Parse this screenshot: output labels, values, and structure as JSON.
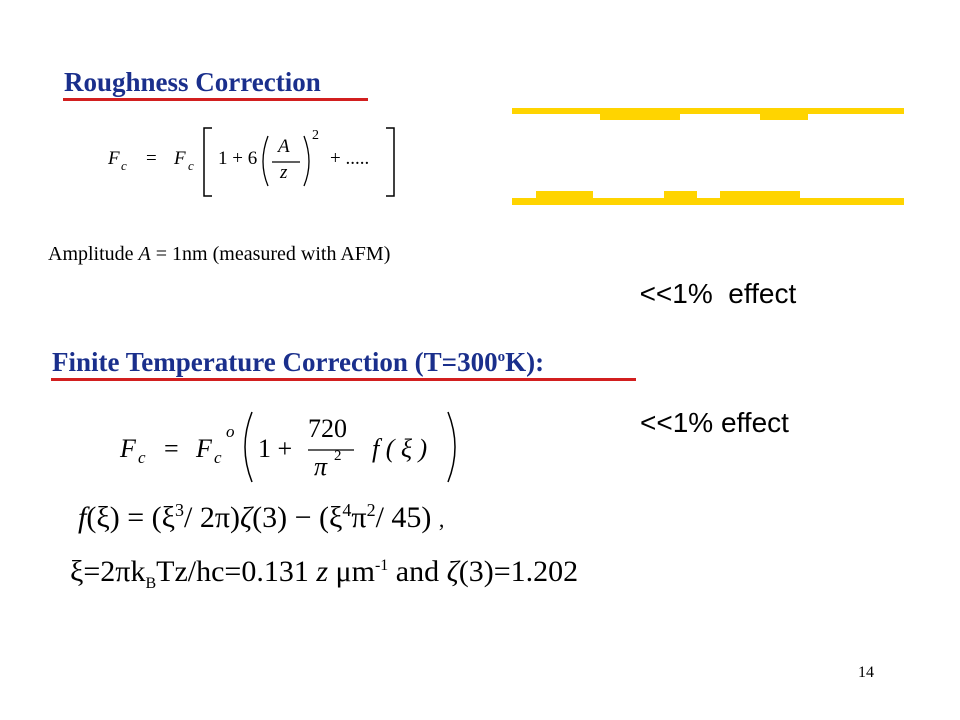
{
  "colors": {
    "heading": "#1a2f8c",
    "underline": "#d21f1f",
    "plate": "#ffd400"
  },
  "roughness": {
    "title": "Roughness Correction",
    "formula": {
      "lhs_F": "F",
      "lhs_sub": "c",
      "eq": "=",
      "rhs_F": "F",
      "rhs_sub": "c",
      "one_plus": "1 + 6",
      "num": "A",
      "den": "z",
      "exp": "2",
      "tail": "+ ....."
    },
    "amplitude": {
      "prefix": "Amplitude",
      "var": "A",
      "rest": "= 1nm (measured with AFM)"
    },
    "effect": "<<1%  effect"
  },
  "temperature": {
    "title_main": "Finite Temperature Correction (T=300",
    "title_sup": "o",
    "title_end": "K):",
    "effect": "<<1% effect",
    "formula": {
      "lhs_F": "F",
      "lhs_sub": "c",
      "eq": "=",
      "rhs_F": "F",
      "rhs_sub": "c",
      "rhs_sup": "o",
      "one_plus": "1 +",
      "num": "720",
      "den": "π",
      "den_exp": "2",
      "fxi": "f ( ξ )"
    },
    "f_line": {
      "f": "f",
      "xi1": "(ξ)",
      "eq": "=",
      "p1": "(ξ",
      "e3": "3",
      "p1b": "/ 2π)",
      "zeta": "ζ",
      "z3": "(3)",
      "minus": "−",
      "p2": "(ξ",
      "e4": "4",
      "pi2": "π",
      "e2": "2",
      "p2b": "/ 45)",
      "comma": ","
    },
    "xi_line": {
      "a": "ξ=2πk",
      "b_sub": "B",
      "c": "Tz/hc=0.131",
      "z": "z",
      "mu": "μm",
      "exp": "-1",
      "and": "and",
      "zeta": "ζ",
      "z3": "(3)=1.202"
    }
  },
  "page_number": "14"
}
